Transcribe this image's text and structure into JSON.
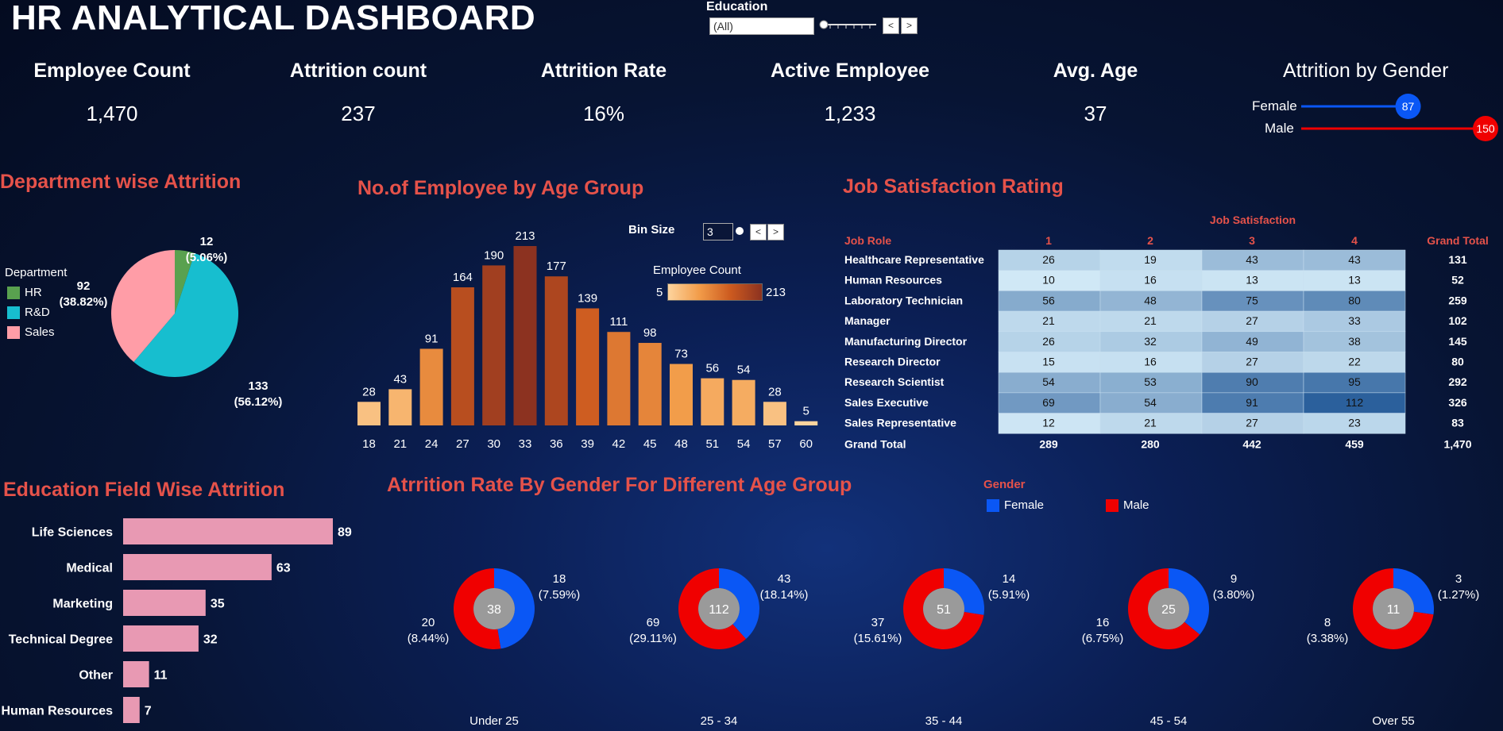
{
  "header": {
    "title": "HR ANALYTICAL DASHBOARD"
  },
  "education_filter": {
    "label": "Education",
    "value": "(All)",
    "prev": "<",
    "next": ">"
  },
  "kpis": [
    {
      "label": "Employee Count",
      "value": "1,470"
    },
    {
      "label": "Attrition count",
      "value": "237"
    },
    {
      "label": "Attrition Rate",
      "value": "16%"
    },
    {
      "label": "Active Employee",
      "value": "1,233"
    },
    {
      "label": "Avg. Age",
      "value": "37"
    }
  ],
  "gender_attrition": {
    "title": "Attrition by Gender",
    "items": [
      {
        "label": "Female",
        "value": 87,
        "color": "#0a57f5"
      },
      {
        "label": "Male",
        "value": 150,
        "color": "#f00000"
      }
    ],
    "max": 150
  },
  "department": {
    "title": "Department wise Attrition",
    "legend_title": "Department",
    "items": [
      {
        "label": "HR",
        "value": 12,
        "pct": "(5.06%)",
        "color": "#59a14f"
      },
      {
        "label": "R&D",
        "value": 133,
        "pct": "(56.12%)",
        "color": "#17becf"
      },
      {
        "label": "Sales",
        "value": 92,
        "pct": "(38.82%)",
        "color": "#ff9da7"
      }
    ]
  },
  "age_group": {
    "title": "No.of Employee by Age Group",
    "bin_label": "Bin Size",
    "bin_value": "3",
    "legend_title": "Employee Count",
    "legend_min": "5",
    "legend_max": "213"
  },
  "job_satisfaction": {
    "title": "Job Satisfaction Rating",
    "col_group": "Job Satisfaction",
    "row_header": "Job Role",
    "columns": [
      "1",
      "2",
      "3",
      "4"
    ],
    "total_header": "Grand Total",
    "rows": [
      {
        "role": "Healthcare Representative",
        "values": [
          26,
          19,
          43,
          43
        ],
        "total": "131"
      },
      {
        "role": "Human Resources",
        "values": [
          10,
          16,
          13,
          13
        ],
        "total": "52"
      },
      {
        "role": "Laboratory Technician",
        "values": [
          56,
          48,
          75,
          80
        ],
        "total": "259"
      },
      {
        "role": "Manager",
        "values": [
          21,
          21,
          27,
          33
        ],
        "total": "102"
      },
      {
        "role": "Manufacturing Director",
        "values": [
          26,
          32,
          49,
          38
        ],
        "total": "145"
      },
      {
        "role": "Research Director",
        "values": [
          15,
          16,
          27,
          22
        ],
        "total": "80"
      },
      {
        "role": "Research Scientist",
        "values": [
          54,
          53,
          90,
          95
        ],
        "total": "292"
      },
      {
        "role": "Sales Executive",
        "values": [
          69,
          54,
          91,
          112
        ],
        "total": "326"
      },
      {
        "role": "Sales Representative",
        "values": [
          12,
          21,
          27,
          23
        ],
        "total": "83"
      }
    ],
    "grand_label": "Grand Total",
    "grand_values": [
      "289",
      "280",
      "442",
      "459"
    ],
    "grand_total": "1,470"
  },
  "education_field": {
    "title": "Education Field Wise Attrition"
  },
  "gender_age": {
    "title": "Atrrition Rate By Gender For Different Age Group",
    "legend_title": "Gender",
    "legend": [
      {
        "label": "Female",
        "color": "#0a57f5"
      },
      {
        "label": "Male",
        "color": "#f00000"
      }
    ]
  },
  "chart_data": [
    {
      "type": "bar",
      "title": "No.of Employee by Age Group",
      "categories": [
        "18",
        "21",
        "24",
        "27",
        "30",
        "33",
        "36",
        "39",
        "42",
        "45",
        "48",
        "51",
        "54",
        "57",
        "60"
      ],
      "values": [
        28,
        43,
        91,
        164,
        190,
        213,
        177,
        139,
        111,
        98,
        73,
        56,
        54,
        28,
        5
      ],
      "ylim": [
        0,
        213
      ]
    },
    {
      "type": "pie",
      "title": "Department wise Attrition",
      "categories": [
        "HR",
        "R&D",
        "Sales"
      ],
      "values": [
        12,
        133,
        92
      ]
    },
    {
      "type": "bar",
      "title": "Education Field Wise Attrition",
      "orientation": "horizontal",
      "categories": [
        "Life Sciences",
        "Medical",
        "Marketing",
        "Technical Degree",
        "Other",
        "Human Resources"
      ],
      "values": [
        89,
        63,
        35,
        32,
        11,
        7
      ],
      "color": "#e899b3"
    },
    {
      "type": "pie",
      "title": "Atrrition Rate By Gender For Different Age Group",
      "groups": [
        {
          "label": "Under 25",
          "total": 38,
          "female": 18,
          "female_pct": "(7.59%)",
          "male": 20,
          "male_pct": "(8.44%)"
        },
        {
          "label": "25 - 34",
          "total": 112,
          "female": 43,
          "female_pct": "(18.14%)",
          "male": 69,
          "male_pct": "(29.11%)"
        },
        {
          "label": "35 - 44",
          "total": 51,
          "female": 14,
          "female_pct": "(5.91%)",
          "male": 37,
          "male_pct": "(15.61%)"
        },
        {
          "label": "45 - 54",
          "total": 25,
          "female": 9,
          "female_pct": "(3.80%)",
          "male": 16,
          "male_pct": "(6.75%)"
        },
        {
          "label": "Over 55",
          "total": 11,
          "female": 3,
          "female_pct": "(1.27%)",
          "male": 8,
          "male_pct": "(3.38%)"
        }
      ]
    }
  ]
}
